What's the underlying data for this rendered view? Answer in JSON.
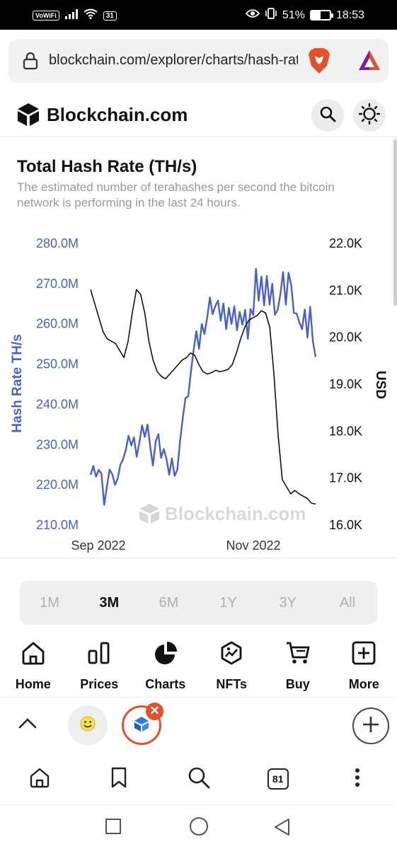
{
  "status_bar": {
    "vowifi": "VoWiFi",
    "calendar_day": "31",
    "battery": "51%",
    "battery_level": 0.51,
    "time": "18:53"
  },
  "browser": {
    "url": "blockchain.com/explorer/charts/hash-rate",
    "tab_count": "81"
  },
  "site": {
    "logo_text": "Blockchain.com"
  },
  "chart_card": {
    "title": "Total Hash Rate (TH/s)",
    "description_line1": "The estimated number of terahashes per second the bitcoin",
    "description_line2": "network is performing in the last 24 hours.",
    "watermark": "Blockchain.com"
  },
  "chart_data": {
    "type": "line",
    "title": "Total Hash Rate (TH/s)",
    "xlabel": "",
    "x_ticks": [
      "Sep 2022",
      "Nov 2022"
    ],
    "y_left": {
      "label": "Hash Rate TH/s",
      "ticks": [
        "210.0M",
        "220.0M",
        "230.0M",
        "240.0M",
        "250.0M",
        "260.0M",
        "270.0M",
        "280.0M"
      ],
      "range": [
        210,
        280
      ],
      "unit": "M TH/s",
      "color": "#4a5fd0"
    },
    "y_right": {
      "label": "USD",
      "ticks": [
        "16.0K",
        "17.0K",
        "18.0K",
        "19.0K",
        "20.0K",
        "21.0K",
        "22.0K"
      ],
      "range": [
        16000,
        22000
      ],
      "color": "#111111"
    },
    "grid": false,
    "series": [
      {
        "name": "Hash Rate TH/s",
        "axis": "left",
        "color": "#4a5fd0",
        "values": [
          222.3,
          224.5,
          221.8,
          223.5,
          222.6,
          214.8,
          219.3,
          223.6,
          222.4,
          219.8,
          221.3,
          224.8,
          226.2,
          228.5,
          232.0,
          229.6,
          231.6,
          226.8,
          230.4,
          234.6,
          231.7,
          234.8,
          229.3,
          224.6,
          230.6,
          232.4,
          226.5,
          228.7,
          226.2,
          222.3,
          226.4,
          222.0,
          223.6,
          230.6,
          236.4,
          241.4,
          241.8,
          247.9,
          253.3,
          258.0,
          253.6,
          259.8,
          257.3,
          261.3,
          266.4,
          262.2,
          264.2,
          265.6,
          260.6,
          264.9,
          258.5,
          263.8,
          259.8,
          264.2,
          258.2,
          262.8,
          259.6,
          263.3,
          256.1,
          263.5,
          262.0,
          273.5,
          265.6,
          271.6,
          264.4,
          271.7,
          264.6,
          269.8,
          262.1,
          263.3,
          267.2,
          272.7,
          264.6,
          272.5,
          269.5,
          262.5,
          262.4,
          260.2,
          258.5,
          263.4,
          256.4,
          264.1,
          255.4,
          251.6
        ]
      },
      {
        "name": "USD",
        "axis": "right",
        "color": "#111111",
        "values": [
          21000,
          20700,
          20400,
          20100,
          19950,
          19900,
          19850,
          19700,
          19550,
          19900,
          20500,
          21000,
          20900,
          20500,
          19900,
          19500,
          19250,
          19150,
          19100,
          19200,
          19300,
          19400,
          19500,
          19550,
          19650,
          19600,
          19400,
          19250,
          19200,
          19230,
          19280,
          19250,
          19270,
          19300,
          19400,
          19650,
          19950,
          20200,
          20350,
          20400,
          20450,
          20550,
          20500,
          20200,
          19200,
          17900,
          16950,
          16800,
          16650,
          16720,
          16650,
          16600,
          16550,
          16450,
          16430
        ]
      }
    ]
  },
  "range_selector": {
    "options": [
      "1M",
      "3M",
      "6M",
      "1Y",
      "3Y",
      "All"
    ],
    "selected": "3M"
  },
  "site_nav": {
    "items": [
      "Home",
      "Prices",
      "Charts",
      "NFTs",
      "Buy",
      "More"
    ]
  },
  "colors": {
    "hash_rate": "#4a5fd0",
    "price": "#111111",
    "brave_orange": "#e4502c"
  }
}
